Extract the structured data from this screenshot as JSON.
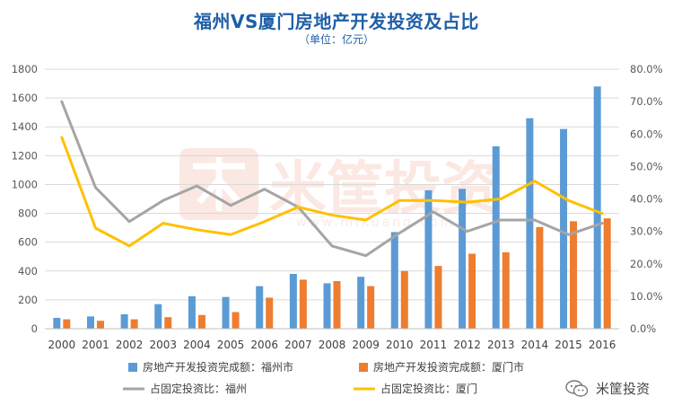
{
  "title": "福州VS厦门房地产开发投资及占比",
  "subtitle": "（单位：亿元）",
  "watermark": {
    "text": "米筐投资",
    "url": "www.mikuang.com"
  },
  "brand": {
    "text": "米筐投资",
    "icon": "wechat-icon"
  },
  "colors": {
    "fuzhou_bar": "#5B9BD5",
    "xiamen_bar": "#ED7D31",
    "fuzhou_line": "#A5A5A5",
    "xiamen_line": "#FFC000",
    "title": "#1F5FA8"
  },
  "chart_data": {
    "type": "bar+line",
    "categories": [
      "2000",
      "2001",
      "2002",
      "2003",
      "2004",
      "2005",
      "2006",
      "2007",
      "2008",
      "2009",
      "2010",
      "2011",
      "2012",
      "2013",
      "2014",
      "2015",
      "2016"
    ],
    "y_left": {
      "range": [
        0,
        1800
      ],
      "ticks": [
        "0",
        "200",
        "400",
        "600",
        "800",
        "1000",
        "1200",
        "1400",
        "1600",
        "1800"
      ]
    },
    "y_right": {
      "range": [
        0,
        80
      ],
      "ticks": [
        "0.0%",
        "10.0%",
        "20.0%",
        "30.0%",
        "40.0%",
        "50.0%",
        "60.0%",
        "70.0%",
        "80.0%"
      ]
    },
    "grid": true,
    "legend_position": "bottom",
    "series": [
      {
        "name": "房地产开发投资完成额：福州市",
        "kind": "bar",
        "axis": "left",
        "values": [
          75,
          85,
          100,
          170,
          225,
          220,
          295,
          380,
          315,
          360,
          670,
          960,
          970,
          1265,
          1460,
          1385,
          1680
        ]
      },
      {
        "name": "房地产开发投资完成额：厦门市",
        "kind": "bar",
        "axis": "left",
        "values": [
          65,
          55,
          65,
          80,
          95,
          115,
          215,
          340,
          330,
          295,
          400,
          435,
          520,
          530,
          705,
          745,
          765
        ]
      },
      {
        "name": "占固定投资比：福州",
        "kind": "line",
        "axis": "right",
        "values": [
          70,
          43.5,
          33,
          39.5,
          44,
          38,
          43,
          37.5,
          25.5,
          22.5,
          29.5,
          36,
          30,
          33.5,
          33.5,
          29,
          32.5
        ]
      },
      {
        "name": "占固定投资比：厦门",
        "kind": "line",
        "axis": "right",
        "values": [
          59,
          31,
          25.5,
          32.5,
          30.5,
          29,
          33,
          37.5,
          35,
          33.5,
          39.5,
          39.5,
          39,
          40,
          45.5,
          39.5,
          35.5
        ]
      }
    ]
  }
}
